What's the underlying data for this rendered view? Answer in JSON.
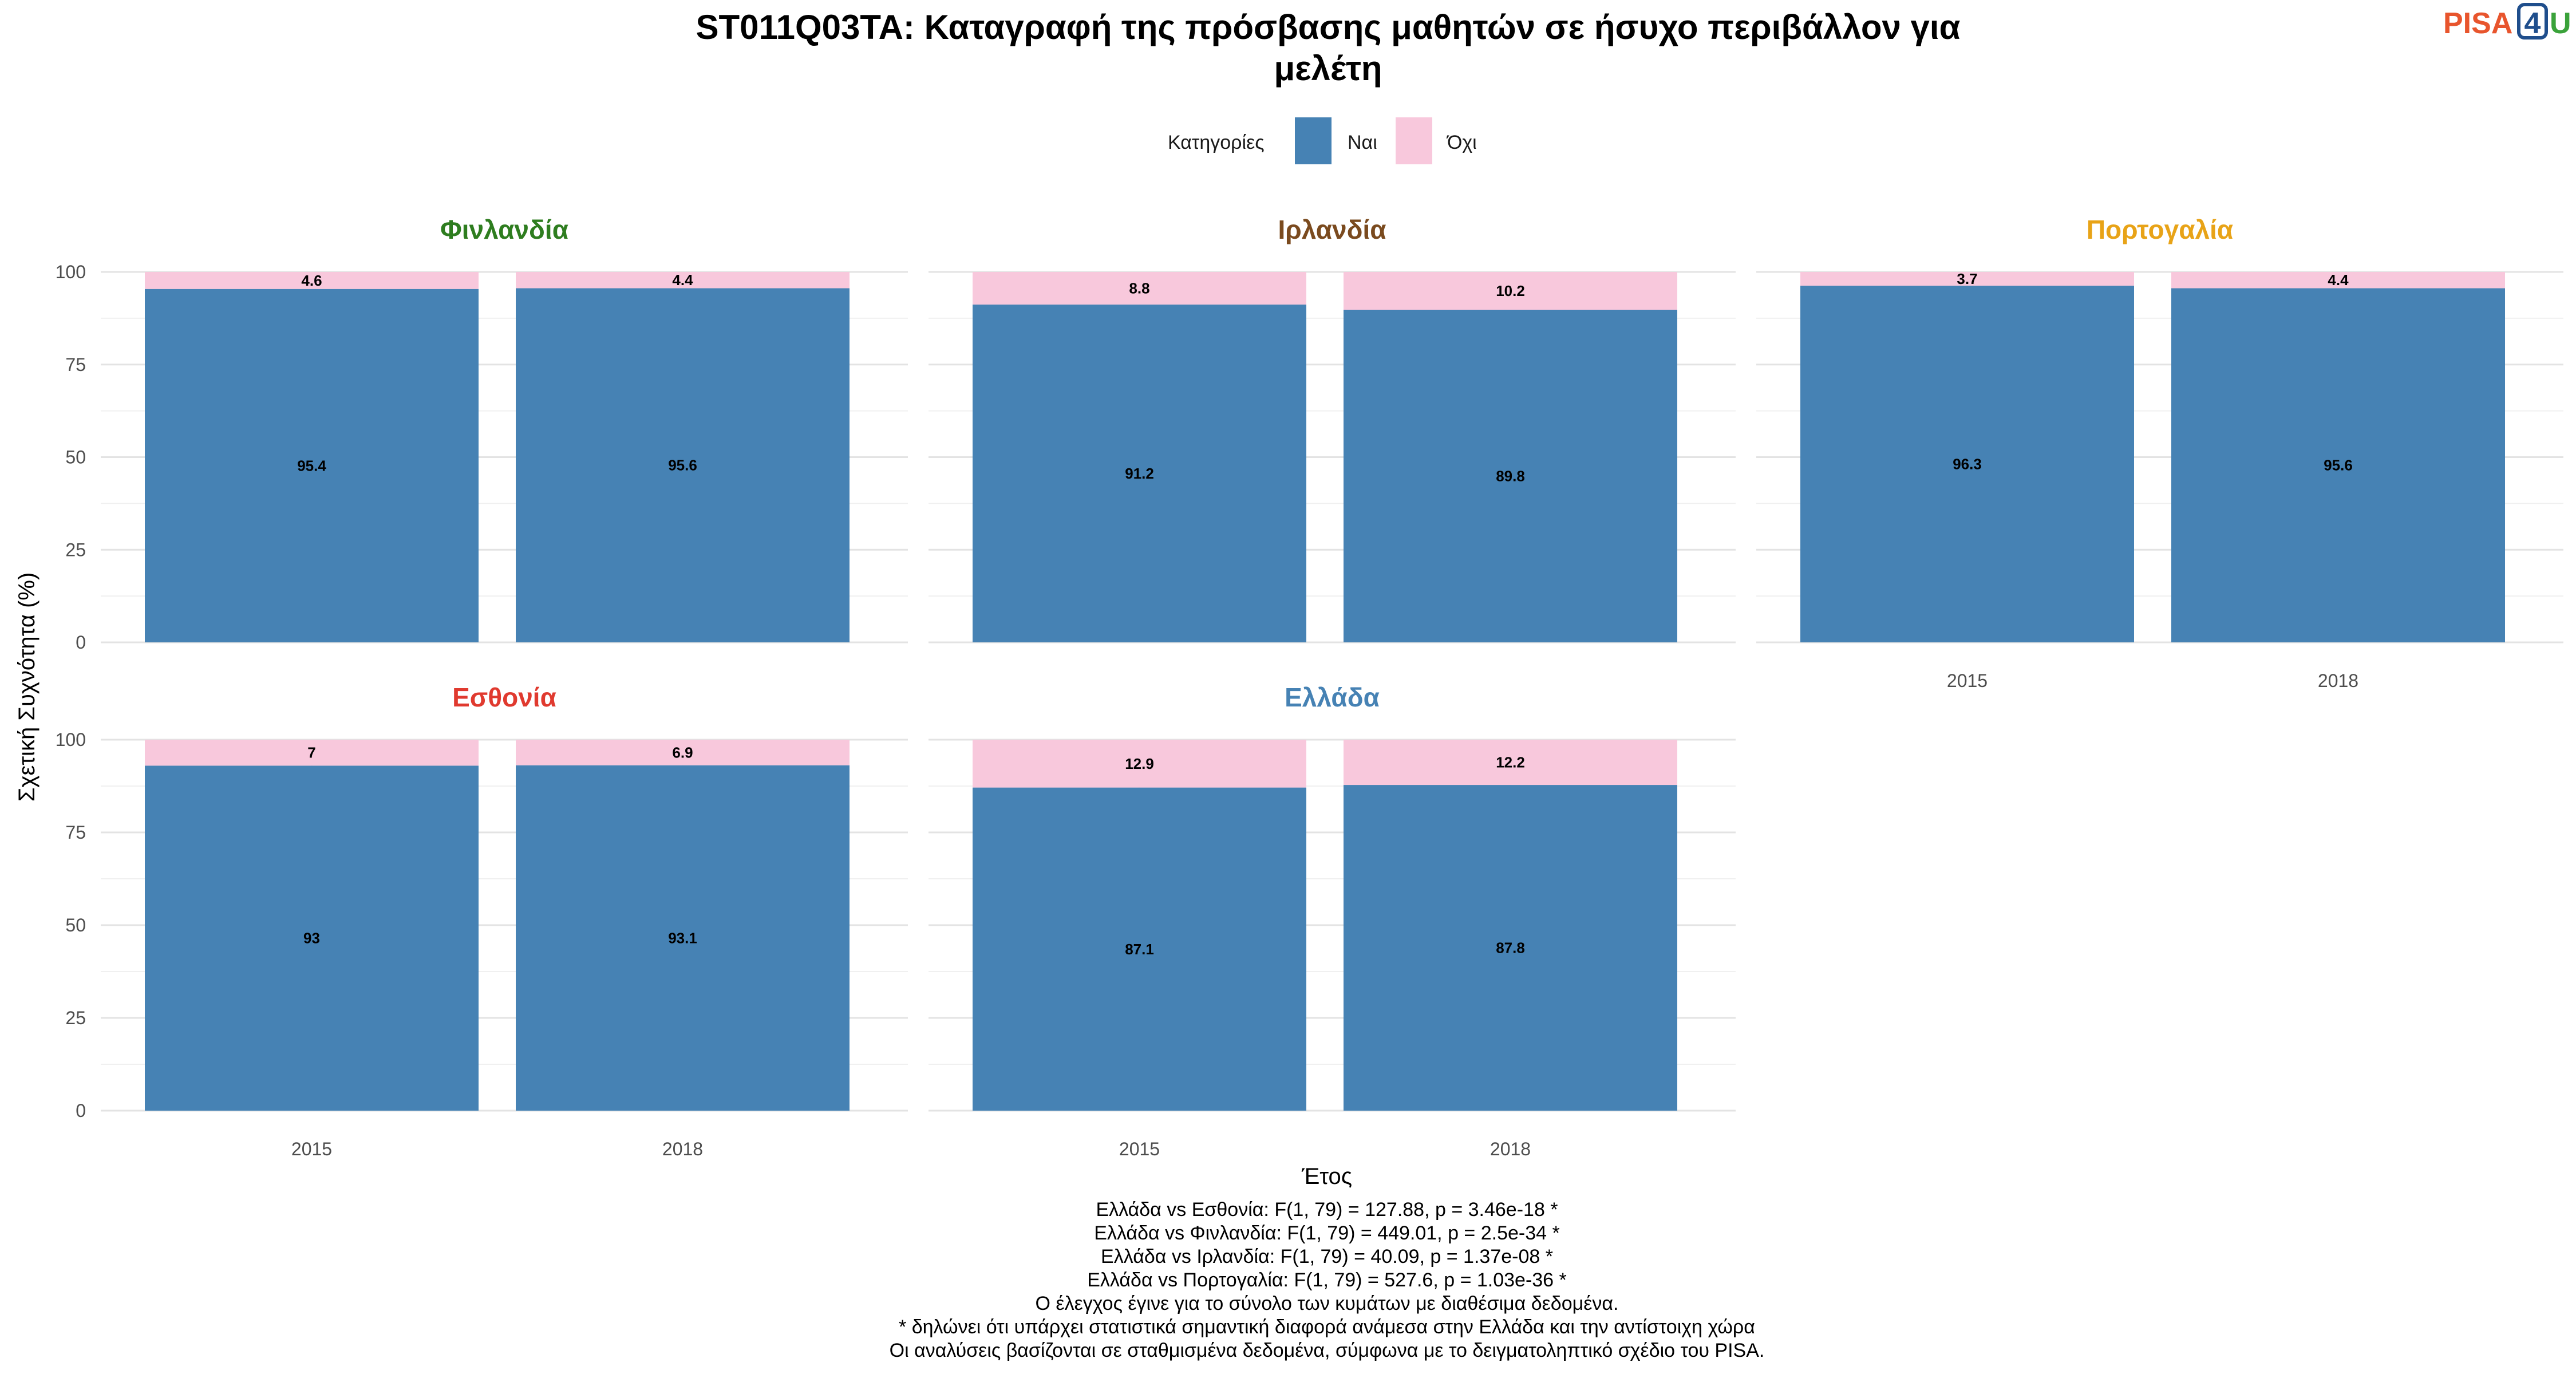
{
  "chart_data": {
    "type": "bar",
    "stacked": true,
    "title_lines": [
      "ST011Q03TA: Καταγραφή της πρόσβασης μαθητών σε ήσυχο περιβάλλον για",
      "μελέτη"
    ],
    "xlabel": "Έτος",
    "ylabel": "Σχετική Συχνότητα (%)",
    "ylim": [
      0,
      100
    ],
    "yticks": [
      "0",
      "25",
      "50",
      "75",
      "100"
    ],
    "categories": [
      "2015",
      "2018"
    ],
    "legend": {
      "title": "Κατηγορίες",
      "position": "top",
      "entries": [
        {
          "name": "Ναι",
          "color": "#4682b4"
        },
        {
          "name": "Όχι",
          "color": "#f8c8dc"
        }
      ]
    },
    "grid": true,
    "facets": [
      {
        "name": "Φινλανδία",
        "color": "#2e7d1f",
        "yes": [
          95.4,
          95.6
        ],
        "no": [
          4.6,
          4.4
        ],
        "yes_labels": [
          "95.4",
          "95.6"
        ],
        "no_labels": [
          "4.6",
          "4.4"
        ]
      },
      {
        "name": "Ιρλανδία",
        "color": "#7a4a1e",
        "yes": [
          91.2,
          89.8
        ],
        "no": [
          8.8,
          10.2
        ],
        "yes_labels": [
          "91.2",
          "89.8"
        ],
        "no_labels": [
          "8.8",
          "10.2"
        ]
      },
      {
        "name": "Πορτογαλία",
        "color": "#e8a317",
        "yes": [
          96.3,
          95.6
        ],
        "no": [
          3.7,
          4.4
        ],
        "yes_labels": [
          "96.3",
          "95.6"
        ],
        "no_labels": [
          "3.7",
          "4.4"
        ]
      },
      {
        "name": "Εσθονία",
        "color": "#e03a2f",
        "yes": [
          93,
          93.1
        ],
        "no": [
          7,
          6.9
        ],
        "yes_labels": [
          "93",
          "93.1"
        ],
        "no_labels": [
          "7",
          "6.9"
        ]
      },
      {
        "name": "Ελλάδα",
        "color": "#4682b4",
        "yes": [
          87.1,
          87.8
        ],
        "no": [
          12.9,
          12.2
        ],
        "yes_labels": [
          "87.1",
          "87.8"
        ],
        "no_labels": [
          "12.9",
          "12.2"
        ]
      }
    ],
    "caption_lines": [
      "Ελλάδα vs Εσθονία: F(1, 79) = 127.88, p = 3.46e-18 *",
      "Ελλάδα vs Φινλανδία: F(1, 79) = 449.01, p = 2.5e-34 *",
      "Ελλάδα vs Ιρλανδία: F(1, 79) = 40.09, p = 1.37e-08 *",
      "Ελλάδα vs Πορτογαλία: F(1, 79) = 527.6, p = 1.03e-36 *",
      "Ο έλεγχος έγινε για το σύνολο των κυμάτων με διαθέσιμα δεδομένα.",
      "* δηλώνει ότι υπάρχει στατιστικά σημαντική διαφορά ανάμεσα στην Ελλάδα και την αντίστοιχη χώρα",
      "Οι αναλύσεις βασίζονται σε σταθμισμένα δεδομένα, σύμφωνα με το δειγματοληπτικό σχέδιο του PISA."
    ]
  },
  "logo": {
    "text": "PISA4U",
    "colors": {
      "pisa": "#e8552d",
      "four": "#1f4e8c",
      "u": "#3aa23a"
    }
  }
}
